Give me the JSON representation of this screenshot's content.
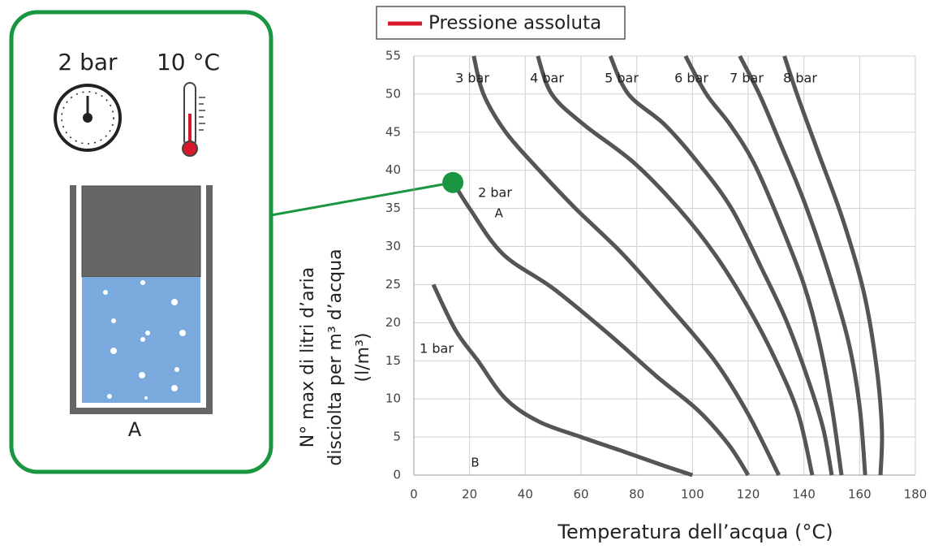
{
  "chart_data": {
    "type": "line",
    "legend_label": "Pressione assoluta",
    "legend_color": "#d7192b",
    "xlabel": "Temperatura dell’acqua (°C)",
    "ylabel": [
      "N° max di litri d’aria",
      "disciolta per m³ d’acqua",
      "(l/m³)"
    ],
    "xlim": [
      0,
      180
    ],
    "xticks": [
      0,
      20,
      40,
      60,
      80,
      100,
      120,
      140,
      160,
      180
    ],
    "ylim": [
      0,
      55
    ],
    "yticks": [
      0,
      5,
      10,
      15,
      20,
      25,
      30,
      35,
      40,
      45,
      50,
      55
    ],
    "grid": true,
    "line_color": "#555555",
    "series": [
      {
        "name": "1 bar",
        "x": [
          7,
          15,
          23,
          33,
          45,
          60,
          76,
          90,
          100
        ],
        "values": [
          25,
          19,
          15,
          10,
          7,
          5,
          3,
          1.2,
          0
        ]
      },
      {
        "name": "2 bar",
        "x": [
          14,
          20,
          32,
          50,
          70,
          87,
          102,
          113,
          120
        ],
        "values": [
          38.5,
          35,
          29,
          24.5,
          18.5,
          13,
          8.5,
          4,
          0
        ]
      },
      {
        "name": "3 bar",
        "x": [
          21.5,
          25,
          33,
          45,
          58,
          75,
          92,
          108,
          120,
          131
        ],
        "values": [
          55,
          50,
          45,
          40,
          35,
          29,
          22,
          15,
          8,
          0
        ]
      },
      {
        "name": "4 bar",
        "x": [
          44.5,
          49.5,
          61,
          79,
          95,
          108,
          120,
          130,
          138,
          143
        ],
        "values": [
          55,
          50,
          46,
          41,
          35,
          29,
          22,
          15,
          8,
          0
        ]
      },
      {
        "name": "5 bar",
        "x": [
          70.5,
          77,
          90,
          102,
          114,
          125,
          134,
          142,
          147,
          150
        ],
        "values": [
          55,
          50,
          46,
          41,
          35,
          27,
          20,
          12,
          6,
          0
        ]
      },
      {
        "name": "6 bar",
        "x": [
          97.5,
          105,
          113.5,
          122,
          131,
          140,
          145.5,
          150,
          153.5
        ],
        "values": [
          55,
          50,
          46,
          41,
          33.5,
          25,
          17.5,
          9,
          0
        ]
      },
      {
        "name": "7 bar",
        "x": [
          117,
          124,
          131,
          140,
          148.5,
          156,
          160,
          162
        ],
        "values": [
          55,
          50,
          44,
          36,
          27,
          17.5,
          9,
          0
        ]
      },
      {
        "name": "8 bar",
        "x": [
          133,
          138,
          145.5,
          154,
          161.5,
          166,
          168,
          167.5
        ],
        "values": [
          55,
          49.5,
          42,
          33.5,
          24,
          14.4,
          6,
          0
        ]
      }
    ],
    "annotations": [
      {
        "text": "A",
        "x": 30.5,
        "y": 34.3
      },
      {
        "text": "B",
        "x": 22,
        "y": 1.6
      }
    ],
    "highlight_point": {
      "x": 14,
      "y": 38.4,
      "color": "#1a9641"
    }
  },
  "panel": {
    "pressure_label": "2 bar",
    "temperature_label": "10 °C",
    "container_label": "A"
  }
}
